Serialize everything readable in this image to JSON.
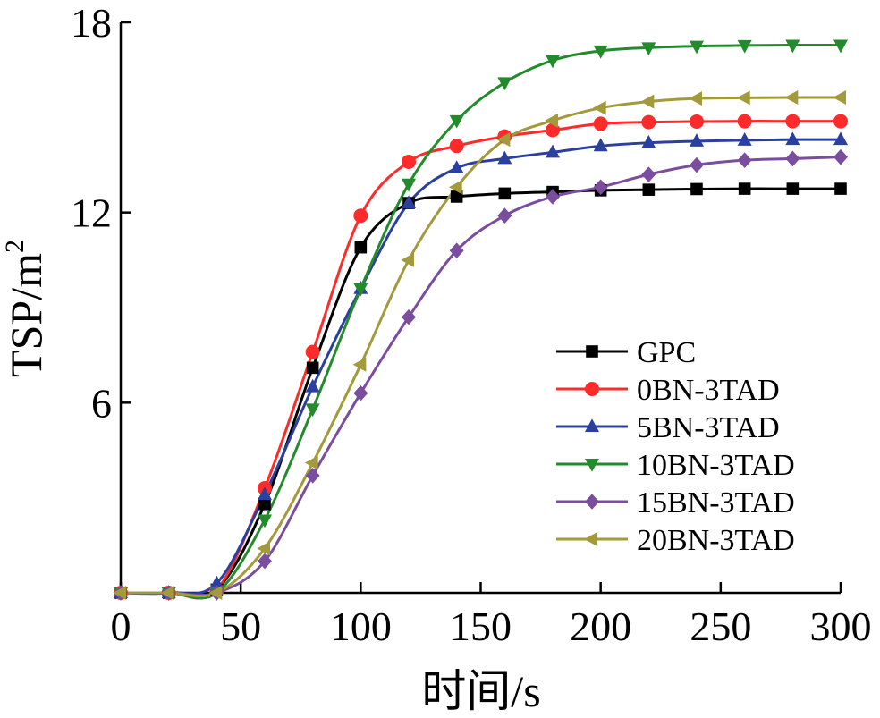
{
  "chart_data": {
    "type": "line",
    "xlabel": "时间/s",
    "ylabel_main": "TSP/m",
    "ylabel_sup": "2",
    "xlim": [
      0,
      300
    ],
    "ylim": [
      0,
      18
    ],
    "xticks": [
      0,
      50,
      100,
      150,
      200,
      250,
      300
    ],
    "yticks": [
      6,
      12,
      18
    ],
    "x": [
      0,
      20,
      40,
      60,
      80,
      100,
      120,
      140,
      160,
      180,
      200,
      220,
      240,
      260,
      280,
      300
    ],
    "grid": false,
    "legend_position": "center-right",
    "series": [
      {
        "name": "GPC",
        "color": "#000000",
        "marker": "square",
        "values": [
          0,
          0,
          0.1,
          2.8,
          7.1,
          10.9,
          12.3,
          12.5,
          12.6,
          12.65,
          12.7,
          12.72,
          12.74,
          12.75,
          12.75,
          12.75
        ]
      },
      {
        "name": "0BN-3TAD",
        "color": "#ff2a2a",
        "marker": "circle",
        "values": [
          0,
          0,
          0.1,
          3.3,
          7.6,
          11.9,
          13.6,
          14.1,
          14.4,
          14.6,
          14.8,
          14.85,
          14.87,
          14.88,
          14.88,
          14.88
        ]
      },
      {
        "name": "5BN-3TAD",
        "color": "#2b3fa0",
        "marker": "triangle-up",
        "values": [
          0,
          0,
          0.3,
          3.1,
          6.5,
          9.6,
          12.3,
          13.4,
          13.7,
          13.9,
          14.1,
          14.2,
          14.25,
          14.28,
          14.3,
          14.3
        ]
      },
      {
        "name": "10BN-3TAD",
        "color": "#238b2c",
        "marker": "triangle-down",
        "values": [
          0,
          0,
          0,
          2.3,
          5.8,
          9.6,
          12.9,
          14.9,
          16.1,
          16.8,
          17.1,
          17.2,
          17.25,
          17.27,
          17.28,
          17.28
        ]
      },
      {
        "name": "15BN-3TAD",
        "color": "#7b4d9e",
        "marker": "diamond",
        "values": [
          0,
          0,
          0,
          1.0,
          3.7,
          6.3,
          8.7,
          10.8,
          11.9,
          12.5,
          12.8,
          13.2,
          13.5,
          13.65,
          13.7,
          13.75
        ]
      },
      {
        "name": "20BN-3TAD",
        "color": "#a39a3c",
        "marker": "triangle-left",
        "values": [
          0,
          0,
          0,
          1.4,
          4.1,
          7.2,
          10.5,
          12.8,
          14.3,
          14.9,
          15.3,
          15.5,
          15.6,
          15.62,
          15.63,
          15.63
        ]
      }
    ]
  }
}
